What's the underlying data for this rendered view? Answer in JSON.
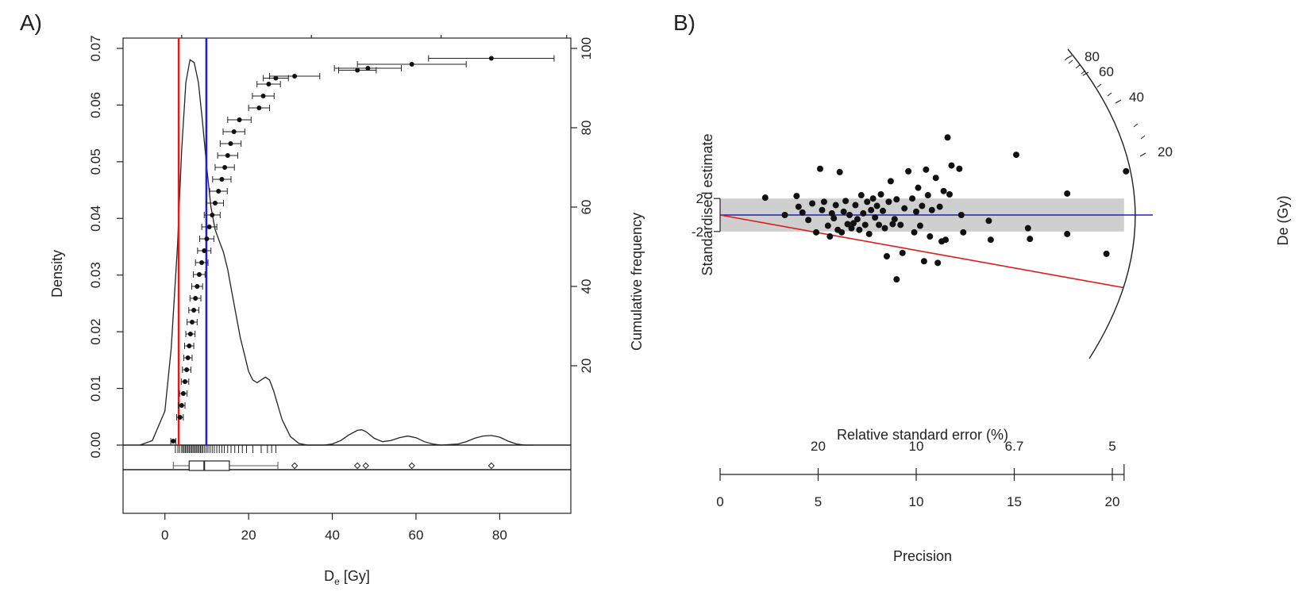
{
  "panels": [
    {
      "label": "A)",
      "chart_data": {
        "type": "line",
        "subtype": "kernel-density with cumulative frequency and boxplot",
        "xlabel": "D",
        "xlabel_sub": "e",
        "xlabel_unit": " [Gy]",
        "ylabel_left": "Density",
        "ylabel_right": "Cumulative frequency",
        "xlim": [
          -10,
          97
        ],
        "ylim_left": [
          0,
          0.07
        ],
        "ylim_right": [
          0,
          100
        ],
        "x_ticks": [
          "0",
          "20",
          "40",
          "60",
          "80"
        ],
        "x_tick_values": [
          0,
          20,
          40,
          60,
          80
        ],
        "y_ticks_left": [
          "0.00",
          "0.01",
          "0.02",
          "0.03",
          "0.04",
          "0.05",
          "0.06",
          "0.07"
        ],
        "y_tick_values_left": [
          0,
          0.01,
          0.02,
          0.03,
          0.04,
          0.05,
          0.06,
          0.07
        ],
        "y_ticks_right": [
          "20",
          "40",
          "60",
          "80",
          "100"
        ],
        "y_tick_values_right": [
          20,
          40,
          60,
          80,
          100
        ],
        "top_tick_values": [
          4,
          35,
          66,
          96
        ],
        "vlines": [
          {
            "x": 3.3,
            "color": "#e31a1c"
          },
          {
            "x": 9.9,
            "color": "#1f1fcf"
          }
        ],
        "density_curve": {
          "x": [
            -6,
            -3,
            0,
            1.5,
            3,
            4,
            5,
            6,
            7,
            8,
            9,
            10,
            11,
            12,
            13,
            14,
            15,
            16,
            17,
            18,
            19,
            20,
            21,
            22,
            23,
            24,
            25,
            26,
            27,
            28,
            30,
            32,
            34,
            36,
            38,
            40,
            42,
            44,
            46,
            47,
            48,
            50,
            52,
            54,
            56,
            58,
            60,
            62,
            64,
            66,
            70,
            72,
            74,
            76,
            78,
            80,
            82,
            84,
            86,
            88
          ],
          "y": [
            0.0,
            0.0008,
            0.006,
            0.017,
            0.035,
            0.052,
            0.064,
            0.068,
            0.0675,
            0.064,
            0.057,
            0.049,
            0.042,
            0.038,
            0.036,
            0.034,
            0.031,
            0.027,
            0.023,
            0.019,
            0.016,
            0.013,
            0.0115,
            0.011,
            0.0115,
            0.012,
            0.0115,
            0.0095,
            0.007,
            0.0045,
            0.0015,
            0.0003,
            0.0,
            0.0,
            0.0,
            0.0002,
            0.0008,
            0.0018,
            0.0026,
            0.0027,
            0.0024,
            0.0012,
            0.0006,
            0.0008,
            0.0013,
            0.0016,
            0.0013,
            0.0006,
            0.0002,
            0.0,
            0.0002,
            0.0006,
            0.0012,
            0.0016,
            0.0017,
            0.0014,
            0.0007,
            0.0002,
            0.0,
            0.0
          ]
        },
        "cumulative_points": [
          {
            "x": 2.0,
            "xerr": 0.6,
            "cf": 1
          },
          {
            "x": 3.6,
            "xerr": 0.8,
            "cf": 7
          },
          {
            "x": 4.0,
            "xerr": 0.8,
            "cf": 10
          },
          {
            "x": 4.4,
            "xerr": 0.9,
            "cf": 13
          },
          {
            "x": 4.8,
            "xerr": 0.9,
            "cf": 16
          },
          {
            "x": 5.2,
            "xerr": 1.0,
            "cf": 19
          },
          {
            "x": 5.5,
            "xerr": 1.0,
            "cf": 22
          },
          {
            "x": 5.8,
            "xerr": 1.1,
            "cf": 25
          },
          {
            "x": 6.1,
            "xerr": 1.1,
            "cf": 28
          },
          {
            "x": 6.5,
            "xerr": 1.2,
            "cf": 31
          },
          {
            "x": 6.9,
            "xerr": 1.2,
            "cf": 34
          },
          {
            "x": 7.3,
            "xerr": 1.3,
            "cf": 37
          },
          {
            "x": 7.7,
            "xerr": 1.3,
            "cf": 40
          },
          {
            "x": 8.2,
            "xerr": 1.4,
            "cf": 43
          },
          {
            "x": 8.8,
            "xerr": 1.5,
            "cf": 46
          },
          {
            "x": 9.4,
            "xerr": 1.6,
            "cf": 49
          },
          {
            "x": 10.0,
            "xerr": 1.7,
            "cf": 52
          },
          {
            "x": 10.6,
            "xerr": 1.8,
            "cf": 55
          },
          {
            "x": 11.3,
            "xerr": 1.9,
            "cf": 58
          },
          {
            "x": 12.0,
            "xerr": 2.0,
            "cf": 61
          },
          {
            "x": 12.8,
            "xerr": 2.1,
            "cf": 64
          },
          {
            "x": 13.6,
            "xerr": 2.2,
            "cf": 67
          },
          {
            "x": 14.3,
            "xerr": 2.3,
            "cf": 70
          },
          {
            "x": 15.0,
            "xerr": 2.4,
            "cf": 73
          },
          {
            "x": 15.7,
            "xerr": 2.5,
            "cf": 76
          },
          {
            "x": 16.5,
            "xerr": 2.6,
            "cf": 79
          },
          {
            "x": 17.8,
            "xerr": 2.8,
            "cf": 82
          },
          {
            "x": 22.5,
            "xerr": 2.5,
            "cf": 85
          },
          {
            "x": 23.5,
            "xerr": 2.6,
            "cf": 88
          },
          {
            "x": 24.8,
            "xerr": 2.8,
            "cf": 91
          },
          {
            "x": 26.5,
            "xerr": 3.0,
            "cf": 92.5
          },
          {
            "x": 31.0,
            "xerr": 6.0,
            "cf": 93
          },
          {
            "x": 46.0,
            "xerr": 4.5,
            "cf": 94.5
          },
          {
            "x": 48.5,
            "xerr": 8.0,
            "cf": 95
          },
          {
            "x": 59.0,
            "xerr": 13.0,
            "cf": 96
          },
          {
            "x": 78.0,
            "xerr": 15.0,
            "cf": 97.5
          }
        ],
        "rug": [
          2.5,
          3.1,
          3.5,
          4.0,
          4.3,
          4.6,
          4.9,
          5.2,
          5.5,
          5.8,
          6.1,
          6.4,
          6.7,
          7.0,
          7.3,
          7.6,
          7.9,
          8.2,
          8.5,
          8.8,
          9.1,
          9.5,
          9.9,
          10.3,
          10.8,
          11.3,
          11.8,
          12.4,
          13.0,
          13.6,
          14.2,
          15.0,
          15.8,
          16.7,
          17.6,
          18.5,
          19.5,
          21.0,
          23.0,
          24.5,
          25.5,
          26.5
        ],
        "boxplot": {
          "whisker_low": 2.0,
          "q1": 5.8,
          "median": 9.4,
          "q3": 15.4,
          "whisker_high": 27.0,
          "outliers": [
            31.0,
            46.0,
            48.0,
            59.0,
            78.0
          ]
        }
      }
    },
    {
      "label": "B)",
      "chart_data": {
        "type": "scatter",
        "subtype": "radial plot",
        "ylabel": "Standardised estimate",
        "y_ticks": [
          "2",
          "-2"
        ],
        "radial_label": "De (Gy)",
        "radial_ticks": [
          "80",
          "60",
          "40",
          "20"
        ],
        "radial_tick_values": [
          80,
          60,
          40,
          20
        ],
        "top_axis_title": "Relative standard error (%)",
        "top_axis_ticks": [
          "20",
          "10",
          "6.7",
          "5"
        ],
        "bottom_axis_title": "Precision",
        "bottom_axis_ticks": [
          "0",
          "5",
          "10",
          "15",
          "20"
        ],
        "bottom_axis_values": [
          0,
          5,
          10,
          15,
          20
        ],
        "x_max": 20.6,
        "central_line_color": "#1f1fcf",
        "min_line_color": "#e31a1c",
        "band_color": "#cfcfcf",
        "central_z": 0,
        "min_line_z_at_max": -8.8,
        "points": [
          {
            "x": 2.3,
            "z": 2.1
          },
          {
            "x": 3.3,
            "z": 0.0
          },
          {
            "x": 3.9,
            "z": 2.3
          },
          {
            "x": 4.0,
            "z": 1.0
          },
          {
            "x": 4.2,
            "z": 0.3
          },
          {
            "x": 4.5,
            "z": -0.6
          },
          {
            "x": 4.7,
            "z": 1.4
          },
          {
            "x": 4.9,
            "z": -2.1
          },
          {
            "x": 5.1,
            "z": 5.6
          },
          {
            "x": 5.2,
            "z": 0.6
          },
          {
            "x": 5.3,
            "z": 1.6
          },
          {
            "x": 5.5,
            "z": -1.3
          },
          {
            "x": 5.6,
            "z": -2.6
          },
          {
            "x": 5.7,
            "z": 0.2
          },
          {
            "x": 5.8,
            "z": -0.4
          },
          {
            "x": 5.9,
            "z": 1.2
          },
          {
            "x": 6.0,
            "z": -1.8
          },
          {
            "x": 6.1,
            "z": 5.2
          },
          {
            "x": 6.2,
            "z": -2.1
          },
          {
            "x": 6.3,
            "z": 0.4
          },
          {
            "x": 6.4,
            "z": 1.7
          },
          {
            "x": 6.5,
            "z": -1.1
          },
          {
            "x": 6.6,
            "z": 0.0
          },
          {
            "x": 6.7,
            "z": -1.6
          },
          {
            "x": 6.8,
            "z": -1.0
          },
          {
            "x": 6.9,
            "z": 1.2
          },
          {
            "x": 7.0,
            "z": -0.5
          },
          {
            "x": 7.1,
            "z": -1.8
          },
          {
            "x": 7.2,
            "z": 2.4
          },
          {
            "x": 7.3,
            "z": 0.2
          },
          {
            "x": 7.4,
            "z": -1.2
          },
          {
            "x": 7.5,
            "z": 1.6
          },
          {
            "x": 7.6,
            "z": -2.3
          },
          {
            "x": 7.7,
            "z": 0.6
          },
          {
            "x": 7.8,
            "z": 2.0
          },
          {
            "x": 7.9,
            "z": -0.3
          },
          {
            "x": 8.0,
            "z": 1.1
          },
          {
            "x": 8.1,
            "z": -1.2
          },
          {
            "x": 8.2,
            "z": 2.5
          },
          {
            "x": 8.3,
            "z": 0.5
          },
          {
            "x": 8.4,
            "z": -1.6
          },
          {
            "x": 8.5,
            "z": -5.0
          },
          {
            "x": 8.6,
            "z": 1.6
          },
          {
            "x": 8.7,
            "z": 4.1
          },
          {
            "x": 8.8,
            "z": -1.1
          },
          {
            "x": 8.9,
            "z": -0.5
          },
          {
            "x": 9.0,
            "z": 1.9
          },
          {
            "x": 9.0,
            "z": -7.8
          },
          {
            "x": 9.2,
            "z": -1.2
          },
          {
            "x": 9.3,
            "z": -4.6
          },
          {
            "x": 9.4,
            "z": 0.8
          },
          {
            "x": 9.6,
            "z": 5.3
          },
          {
            "x": 9.8,
            "z": 2.0
          },
          {
            "x": 9.9,
            "z": -2.1
          },
          {
            "x": 10.0,
            "z": 0.4
          },
          {
            "x": 10.1,
            "z": 3.3
          },
          {
            "x": 10.2,
            "z": -1.3
          },
          {
            "x": 10.3,
            "z": 1.1
          },
          {
            "x": 10.4,
            "z": -5.6
          },
          {
            "x": 10.5,
            "z": 5.5
          },
          {
            "x": 10.6,
            "z": 2.4
          },
          {
            "x": 10.7,
            "z": -2.6
          },
          {
            "x": 10.8,
            "z": 0.6
          },
          {
            "x": 11.0,
            "z": 4.5
          },
          {
            "x": 11.1,
            "z": -5.8
          },
          {
            "x": 11.2,
            "z": 1.0
          },
          {
            "x": 11.3,
            "z": -3.2
          },
          {
            "x": 11.4,
            "z": 2.9
          },
          {
            "x": 11.5,
            "z": -3.0
          },
          {
            "x": 11.6,
            "z": 9.4
          },
          {
            "x": 11.7,
            "z": 2.5
          },
          {
            "x": 11.8,
            "z": 6.0
          },
          {
            "x": 12.2,
            "z": 5.6
          },
          {
            "x": 12.3,
            "z": 0.0
          },
          {
            "x": 12.4,
            "z": -2.1
          },
          {
            "x": 13.7,
            "z": -0.7
          },
          {
            "x": 13.8,
            "z": -3.0
          },
          {
            "x": 15.1,
            "z": 7.3
          },
          {
            "x": 15.7,
            "z": -1.6
          },
          {
            "x": 15.8,
            "z": -2.9
          },
          {
            "x": 17.7,
            "z": 2.6
          },
          {
            "x": 17.7,
            "z": -2.3
          },
          {
            "x": 19.7,
            "z": -4.7
          },
          {
            "x": 20.7,
            "z": 5.3
          }
        ]
      }
    }
  ]
}
